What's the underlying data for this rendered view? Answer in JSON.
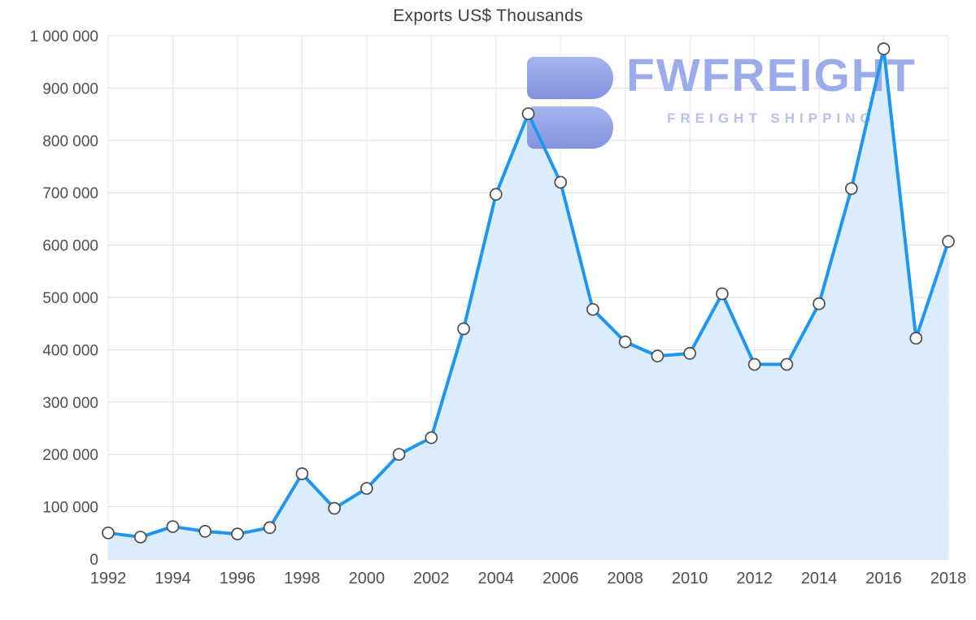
{
  "watermark": {
    "brand": "FWFREIGHT",
    "tagline": "FREIGHT SHIPPING",
    "logo_icon": "blocky-3-logo",
    "brand_color": "#9cacea",
    "tagline_color": "#b6c1f0",
    "logo_color": "#8ea0e6"
  },
  "chart_data": {
    "type": "area",
    "title": "Exports US$ Thousands",
    "xlabel": "",
    "ylabel": "",
    "ylim": [
      0,
      1000000
    ],
    "y_tick_step": 100000,
    "grid": true,
    "legend": "none",
    "x": [
      1992,
      1993,
      1994,
      1995,
      1996,
      1997,
      1998,
      1999,
      2000,
      2001,
      2002,
      2003,
      2004,
      2005,
      2006,
      2007,
      2008,
      2009,
      2010,
      2011,
      2012,
      2013,
      2014,
      2015,
      2016,
      2017,
      2018
    ],
    "series": [
      {
        "name": "Exports US$ Thousands",
        "values": [
          50000,
          42000,
          62000,
          53000,
          48000,
          60000,
          163000,
          97000,
          135000,
          200000,
          232000,
          440000,
          697000,
          851000,
          720000,
          477000,
          415000,
          388000,
          393000,
          507000,
          372000,
          372000,
          488000,
          708000,
          975000,
          422000,
          607000
        ]
      }
    ],
    "y_ticks": [
      {
        "value": 0,
        "label": "0"
      },
      {
        "value": 100000,
        "label": "100 000"
      },
      {
        "value": 200000,
        "label": "200 000"
      },
      {
        "value": 300000,
        "label": "300 000"
      },
      {
        "value": 400000,
        "label": "400 000"
      },
      {
        "value": 500000,
        "label": "500 000"
      },
      {
        "value": 600000,
        "label": "600 000"
      },
      {
        "value": 700000,
        "label": "700 000"
      },
      {
        "value": 800000,
        "label": "800 000"
      },
      {
        "value": 900000,
        "label": "900 000"
      },
      {
        "value": 1000000,
        "label": "1 000 000"
      }
    ],
    "x_ticks": [
      {
        "index": 0,
        "label": "1992"
      },
      {
        "index": 2,
        "label": "1994"
      },
      {
        "index": 4,
        "label": "1996"
      },
      {
        "index": 6,
        "label": "1998"
      },
      {
        "index": 8,
        "label": "2000"
      },
      {
        "index": 10,
        "label": "2002"
      },
      {
        "index": 12,
        "label": "2004"
      },
      {
        "index": 14,
        "label": "2006"
      },
      {
        "index": 16,
        "label": "2008"
      },
      {
        "index": 18,
        "label": "2010"
      },
      {
        "index": 20,
        "label": "2012"
      },
      {
        "index": 22,
        "label": "2014"
      },
      {
        "index": 24,
        "label": "2016"
      },
      {
        "index": 26,
        "label": "2018"
      }
    ],
    "colors": {
      "line": "#1e97f3",
      "area": "#d7eafc",
      "marker_fill": "#ffffff",
      "marker_stroke": "#4c4c4c",
      "grid_h": "#dddddd",
      "grid_v": "#e7e7e7",
      "grid_zero": "#cfcfcf",
      "tick_text": "#4f4f4f",
      "title_text": "#3d3d3d"
    }
  }
}
